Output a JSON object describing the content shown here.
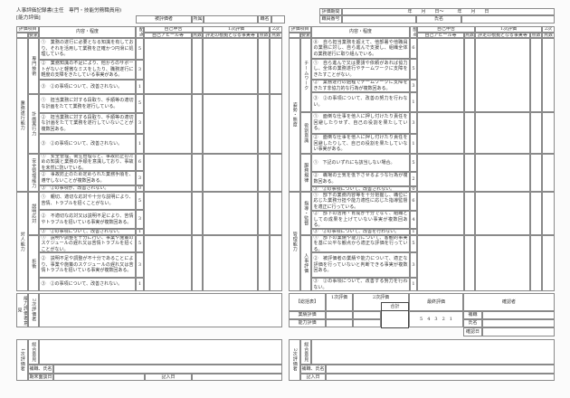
{
  "header": {
    "title": "人事評価記録書(主任　専門・技能労務職員用)",
    "subtitle": "[能力評価]",
    "evaluatee_label": "被評価者",
    "dept_label": "所属",
    "position_label": "職名",
    "period_label": "評価期間",
    "period_value": "年　　月　　日～　　　年　　月　　日",
    "staff_no_label": "職員番号",
    "name_label": "氏名"
  },
  "table_headers": {
    "item": "評価項目",
    "element": "要素",
    "content": "内容・程度",
    "allocation": "配点",
    "self_report": "自己申告",
    "self_appeal": "自己アピール等",
    "score": "点数",
    "first_eval": "1次評価",
    "first_basis": "評定の根拠となる事実等",
    "second_eval": "2次",
    "second_score": "点数"
  },
  "left_table": [
    {
      "label": "業務遂行能力",
      "subs": [
        {
          "label": "専門技術",
          "rows": [
            {
              "text": "①　業務の遂行に必要となる知識を有しており、それを活用して業務を正確かつ円滑に処理している。",
              "pts": "5"
            },
            {
              "text": "②　業務知識の不足により、他からのサポートがないと軽微なミスをしたり、職務遂行に軽度の支障をきたしている事実がある。",
              "pts": "3"
            },
            {
              "text": "③　②の事項について、改善されない。",
              "pts": "1"
            }
          ]
        },
        {
          "label": "計画実行力",
          "rows": [
            {
              "text": "①　担当業務に対する段取り、手順等の適切な計画をたてて業務を遂行している。",
              "pts": "5"
            },
            {
              "text": "②　担当業務に対する段取り、手順等の適切な計画をたてて業務を遂行していないことが複数回ある。",
              "pts": "3"
            },
            {
              "text": "③　②の事項について、改善されない。",
              "pts": "1"
            }
          ]
        },
        {
          "label": "安全管理能力",
          "rows": [
            {
              "text": "①　安全管理、衛生管理など、事故防止のための知識と業務の手順を意識しており、事故を未然に防いでいる。",
              "pts": "6"
            },
            {
              "text": "②　事故防止のため定められた業務手順を、遵守しないことが複数回ある。",
              "pts": "3"
            },
            {
              "text": "③　②の事項が、改善されない。",
              "pts": "0"
            }
          ]
        }
      ]
    },
    {
      "label": "対人能力",
      "subs": [
        {
          "label": "説明応対",
          "rows": [
            {
              "text": "①　親切、適切な応対や十分な説明により、苦情、トラブルを招くことがない。",
              "pts": "5"
            },
            {
              "text": "②　不適切な応対又は説明不足により、苦情やトラブルを招いている事実が複数回ある。",
              "pts": "3"
            },
            {
              "text": "③　②の事項について、改善されない。",
              "pts": "1"
            }
          ]
        },
        {
          "label": "折衝",
          "rows": [
            {
              "text": "①　説明や調整を十分に行い、事業や施策のスケジュールの遅れ又は苦情トラブルを招くことがない。",
              "pts": "5"
            },
            {
              "text": "②　説明不足や調整が不十分であることにより、事業や施策のスケジュールの遅れ又は苦情トラブルを招いている事実が複数回ある。",
              "pts": "3"
            },
            {
              "text": "③　②の事項について、改善されない。",
              "pts": "1"
            }
          ]
        }
      ]
    }
  ],
  "right_table": [
    {
      "label": "姿勢・態度",
      "subs": [
        {
          "label": "チームワーク",
          "rows": [
            {
              "text": "⓪　自ら担当業務を超えて、他部署や他職員の業務に対し、自ら進んで支援し、組織全体の業務遂行に取り組んでいる。",
              "pts": "6"
            },
            {
              "text": "①　自ら進んで又は要請や依頼があれば協力し、全体の業務遂行やチームワークに支障をきたすことがない。",
              "pts": "5"
            },
            {
              "text": "②　業務遂行の過程でチームワークに支障をきたす非協力的な行為が複数回ある。",
              "pts": "3"
            },
            {
              "text": "③　②の事項について、改善の努力を行わない。",
              "pts": "1"
            }
          ]
        },
        {
          "label": "役割意識",
          "rows": [
            {
              "text": "①　面倒な仕事を他人に押し付けたり責任を回避したりせず、自己の役割を果たしている。",
              "pts": "3"
            },
            {
              "text": "②　面倒な仕事を他人に押し付けたり責任を回避したりして、自己の役割を果たしていない事実がある。",
              "pts": "1"
            }
          ]
        },
        {
          "label": "服務規律",
          "rows": [
            {
              "text": "①　下記のいずれにも該当しない場合。",
              "pts": "5"
            },
            {
              "text": "②　職場の士気を低下させるような行為が複数回ある。",
              "pts": "2"
            },
            {
              "text": "③　②の事項について、改善されない。",
              "pts": "0"
            }
          ]
        }
      ]
    },
    {
      "label": "管理能力",
      "subs": [
        {
          "label": "指導・監督",
          "rows": [
            {
              "text": "①　部下の業務内容等を十分把握し、職位に応じた業務分担や能力適性に応じた指導監督を適正に行っている。",
              "pts": "6"
            },
            {
              "text": "②　部下の活用・育成が十分でなく、組織としての成果を上げていない事実が複数回ある。",
              "pts": "4"
            },
            {
              "text": "③　②の事項について、改善を行わない。",
              "pts": "1"
            }
          ]
        },
        {
          "label": "人事評価",
          "rows": [
            {
              "text": "①　部下の業績や能力について、客観的事実を基に公平な観点から適正な評価を行っている。",
              "pts": "5"
            },
            {
              "text": "②　被評価者の業績や能力について、適正な評価を行っていないと判断できる事実が複数回ある。",
              "pts": "3"
            },
            {
              "text": "③　②の事項について、改善する努力を行わない。",
              "pts": "1"
            }
          ]
        }
      ]
    }
  ],
  "second_opinion": {
    "group_label": "能力評価者意見",
    "role_label": "2次評価者"
  },
  "first_evaluator": {
    "label": "1次評価者",
    "overall_label": "総合意見",
    "post_name_label": "補職、氏名",
    "interview_label": "期末面談日",
    "entry_date_label": "記入日"
  },
  "summary": {
    "label": "【総括表】",
    "first_label": "1次評価",
    "second_label": "2次評価",
    "total_label": "合計",
    "final_label": "最終評価",
    "confirmer_label": "確認者",
    "performance_label": "業績評価",
    "ability_label": "能力評価",
    "final_scale": "5　4　3　2　1",
    "post_label": "補職",
    "name_label": "氏名",
    "confirm_date_label": "確認日"
  },
  "second_evaluator": {
    "label": "2次評価者",
    "overall_label": "総合意見",
    "post_name_label": "補職、氏名",
    "entry_date_label": "記入日"
  }
}
